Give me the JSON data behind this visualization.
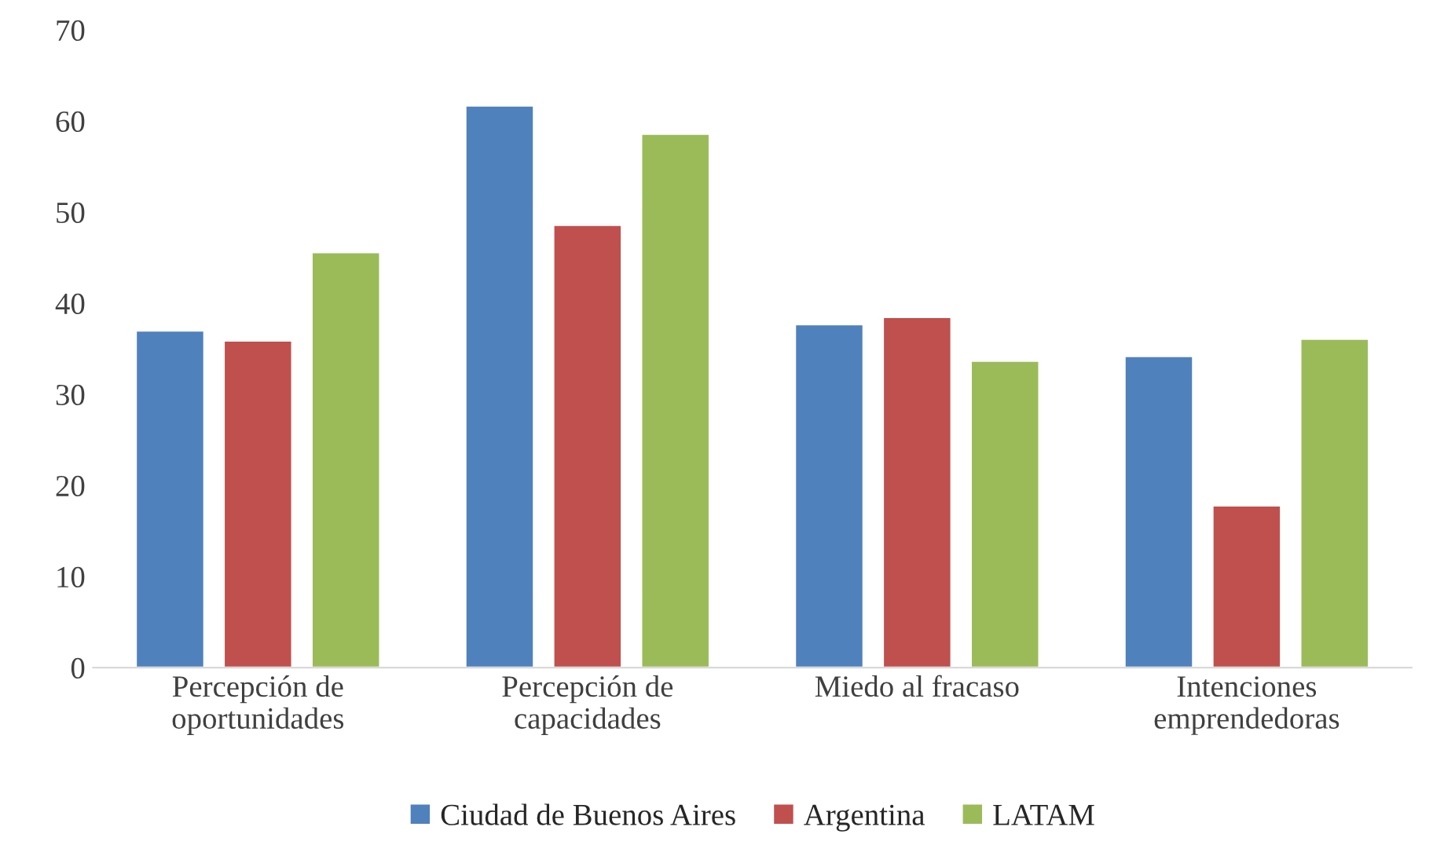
{
  "chart_data": {
    "type": "bar",
    "categories": [
      "Percepción de\noportunidades",
      "Percepción de\ncapacidades",
      "Miedo al fracaso",
      "Intenciones\nemprendedoras"
    ],
    "series": [
      {
        "name": "Ciudad de Buenos Aires",
        "color": "#4f81bd",
        "values": [
          37.0,
          61.7,
          37.7,
          34.2
        ]
      },
      {
        "name": "Argentina",
        "color": "#c0504d",
        "values": [
          35.9,
          48.6,
          38.5,
          17.8
        ]
      },
      {
        "name": "LATAM",
        "color": "#9bbb59",
        "values": [
          45.6,
          58.6,
          33.7,
          36.1
        ]
      }
    ],
    "ylim": [
      0,
      70
    ],
    "yticks": [
      0,
      10,
      20,
      30,
      40,
      50,
      60,
      70
    ],
    "grid": false,
    "legend": "bottom"
  }
}
